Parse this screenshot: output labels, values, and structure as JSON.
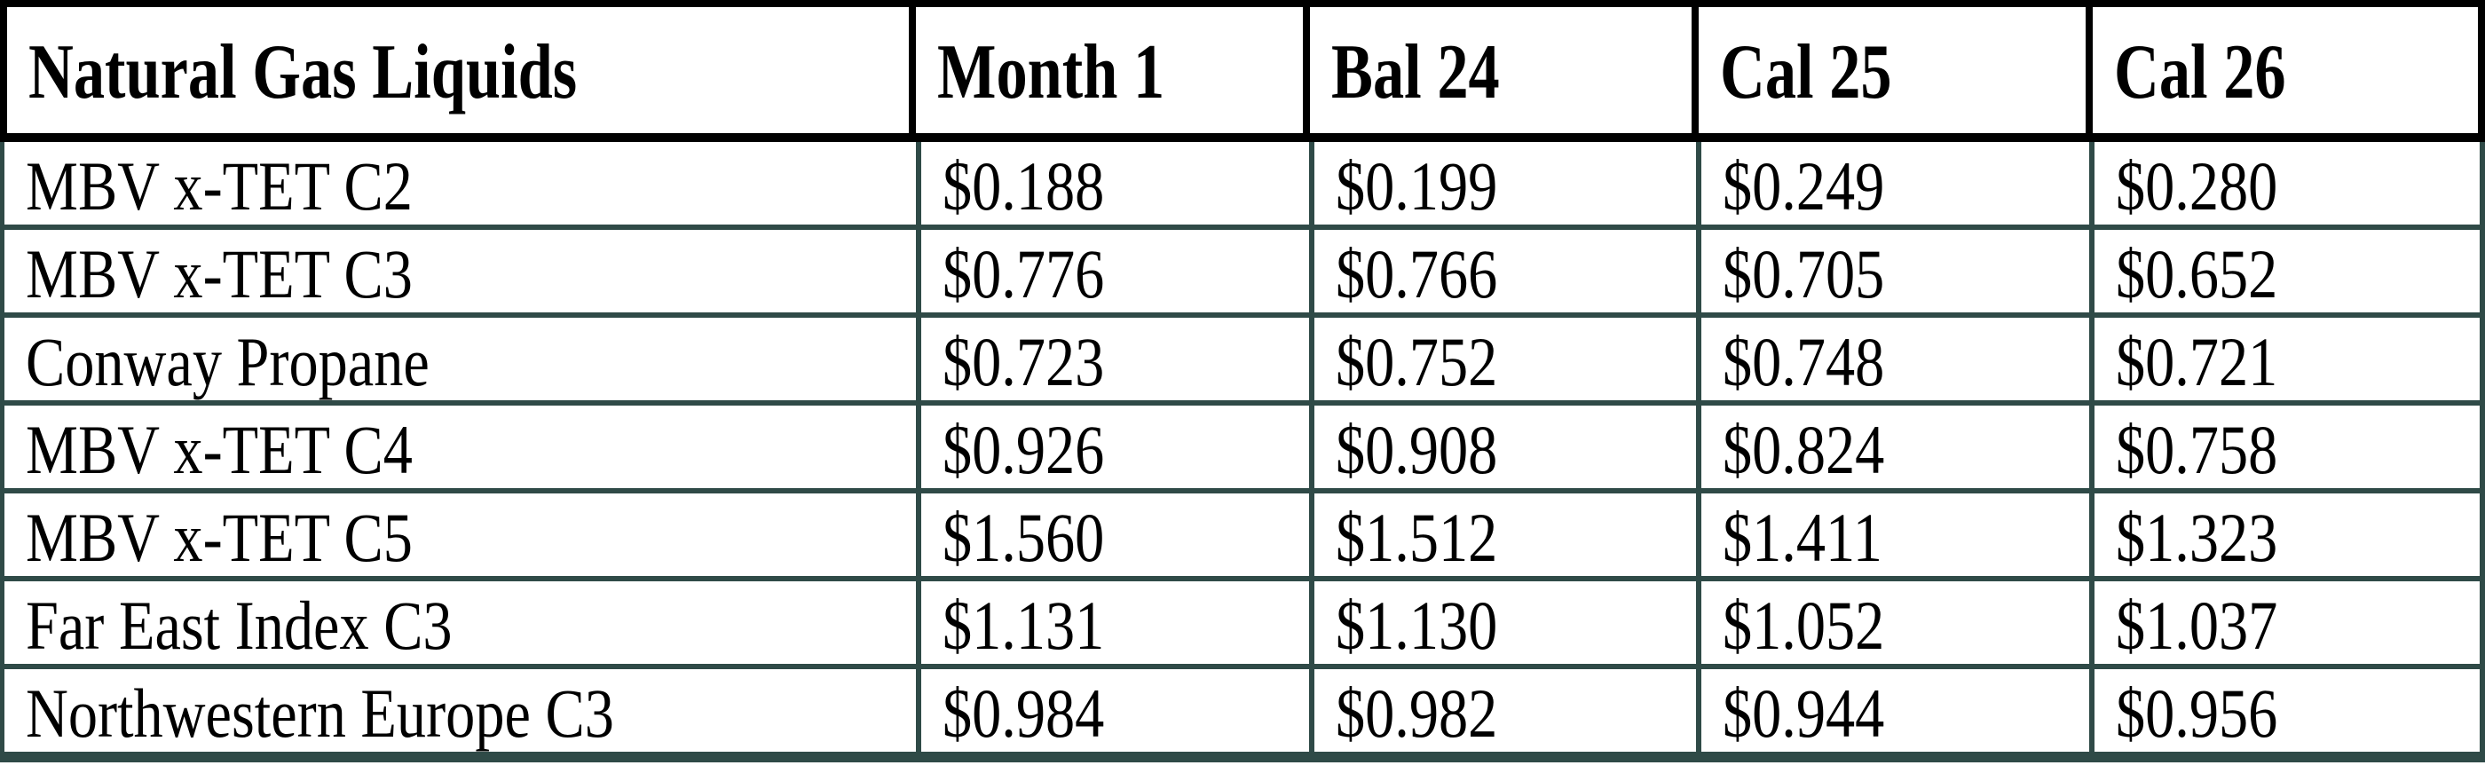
{
  "table": {
    "title_column_header": "Natural Gas Liquids",
    "period_headers": [
      "Month 1",
      "Bal 24",
      "Cal 25",
      "Cal 26"
    ],
    "rows": [
      {
        "label": "MBV x-TET C2",
        "values": [
          "$0.188",
          "$0.199",
          "$0.249",
          "$0.280"
        ]
      },
      {
        "label": "MBV x-TET C3",
        "values": [
          "$0.776",
          "$0.766",
          "$0.705",
          "$0.652"
        ]
      },
      {
        "label": "Conway Propane",
        "values": [
          "$0.723",
          "$0.752",
          "$0.748",
          "$0.721"
        ]
      },
      {
        "label": "MBV x-TET C4",
        "values": [
          "$0.926",
          "$0.908",
          "$0.824",
          "$0.758"
        ]
      },
      {
        "label": "MBV x-TET C5",
        "values": [
          "$1.560",
          "$1.512",
          "$1.411",
          "$1.323"
        ]
      },
      {
        "label": "Far East Index C3",
        "values": [
          "$1.131",
          "$1.130",
          "$1.052",
          "$1.037"
        ]
      },
      {
        "label": "Northwestern Europe C3",
        "values": [
          "$0.984",
          "$0.982",
          "$0.944",
          "$0.956"
        ]
      }
    ],
    "colors": {
      "header_border": "#000000",
      "body_border": "#2f4a47",
      "text": "#000000",
      "cell_background": "#ffffff"
    }
  }
}
